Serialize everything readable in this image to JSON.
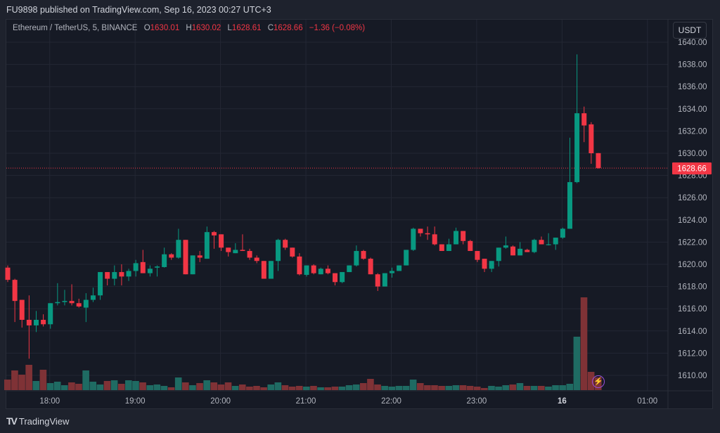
{
  "header": {
    "published": "FU9898 published on TradingView.com, Sep 16, 2023 00:27 UTC+3"
  },
  "legend": {
    "symbol": "Ethereum / TetherUS, 5, BINANCE",
    "o_label": "O",
    "o": "1630.01",
    "h_label": "H",
    "h": "1630.02",
    "l_label": "L",
    "l": "1628.61",
    "c_label": "C",
    "c": "1628.66",
    "change": "−1.36 (−0.08%)"
  },
  "currency_button": "USDT",
  "footer": {
    "logo_mark": "TV",
    "brand": "TradingView"
  },
  "colors": {
    "up": "#089981",
    "down": "#f23645",
    "vol_up": "#1f6b63",
    "vol_down": "#7f3236",
    "grid": "#232734",
    "text": "#b2b5be"
  },
  "chart_data": {
    "type": "candlestick",
    "title": "Ethereum / TetherUS, 5, BINANCE",
    "interval_minutes": 5,
    "first_candle": "17:30",
    "last_price": 1628.66,
    "last_price_label": "1628.66",
    "ylim": [
      1609,
      1640.5
    ],
    "y_ticks": [
      "1610.00",
      "1612.00",
      "1614.00",
      "1616.00",
      "1618.00",
      "1620.00",
      "1622.00",
      "1624.00",
      "1626.00",
      "1628.00",
      "1630.00",
      "1632.00",
      "1634.00",
      "1636.00",
      "1638.00",
      "1640.00"
    ],
    "x_ticks": [
      {
        "label": "18:00",
        "index": 6
      },
      {
        "label": "19:00",
        "index": 18
      },
      {
        "label": "20:00",
        "index": 30
      },
      {
        "label": "21:00",
        "index": 42
      },
      {
        "label": "22:00",
        "index": 54
      },
      {
        "label": "23:00",
        "index": 66
      },
      {
        "label": "16",
        "index": 78,
        "bold": true
      },
      {
        "label": "01:00",
        "index": 90
      }
    ],
    "ohlc": [
      [
        1619.7,
        1619.9,
        1618.4,
        1618.6
      ],
      [
        1618.6,
        1618.7,
        1614.8,
        1616.7
      ],
      [
        1616.8,
        1616.8,
        1614.3,
        1615.0
      ],
      [
        1615.0,
        1617.2,
        1611.5,
        1614.5
      ],
      [
        1614.5,
        1615.8,
        1613.9,
        1615.0
      ],
      [
        1615.0,
        1615.5,
        1614.4,
        1614.6
      ],
      [
        1614.6,
        1616.5,
        1614.2,
        1616.5
      ],
      [
        1616.5,
        1618.3,
        1616.3,
        1616.6
      ],
      [
        1616.6,
        1617.7,
        1616.3,
        1616.7
      ],
      [
        1616.7,
        1618.2,
        1616.3,
        1616.5
      ],
      [
        1616.5,
        1616.9,
        1616.1,
        1616.2
      ],
      [
        1616.1,
        1617.4,
        1614.8,
        1616.8
      ],
      [
        1616.8,
        1617.9,
        1616.6,
        1617.2
      ],
      [
        1617.2,
        1619.3,
        1616.8,
        1619.3
      ],
      [
        1619.3,
        1619.3,
        1618.1,
        1618.7
      ],
      [
        1618.7,
        1619.9,
        1618.1,
        1619.3
      ],
      [
        1619.3,
        1620.0,
        1618.1,
        1618.9
      ],
      [
        1618.9,
        1619.6,
        1618.5,
        1619.4
      ],
      [
        1619.4,
        1620.4,
        1618.9,
        1620.1
      ],
      [
        1620.2,
        1621.3,
        1619.2,
        1619.2
      ],
      [
        1619.2,
        1619.9,
        1618.9,
        1619.6
      ],
      [
        1619.7,
        1619.9,
        1618.9,
        1619.8
      ],
      [
        1619.75,
        1621.5,
        1619.7,
        1620.9
      ],
      [
        1620.9,
        1621.0,
        1620.4,
        1620.6
      ],
      [
        1620.6,
        1623.2,
        1620.5,
        1622.2
      ],
      [
        1622.2,
        1622.2,
        1619.1,
        1619.1
      ],
      [
        1619.1,
        1620.8,
        1619.1,
        1620.8
      ],
      [
        1620.8,
        1621.2,
        1620.2,
        1620.6
      ],
      [
        1620.5,
        1623.4,
        1620.5,
        1622.9
      ],
      [
        1622.9,
        1623.0,
        1621.4,
        1622.6
      ],
      [
        1622.7,
        1622.7,
        1621.2,
        1621.5
      ],
      [
        1621.5,
        1621.5,
        1620.7,
        1621.1
      ],
      [
        1621.0,
        1621.9,
        1621.0,
        1621.3
      ],
      [
        1621.3,
        1622.7,
        1621.2,
        1621.2
      ],
      [
        1621.2,
        1621.4,
        1620.4,
        1620.6
      ],
      [
        1620.6,
        1620.8,
        1620.1,
        1620.3
      ],
      [
        1620.3,
        1620.3,
        1618.7,
        1618.7
      ],
      [
        1618.7,
        1620.3,
        1618.7,
        1620.3
      ],
      [
        1620.3,
        1622.3,
        1619.4,
        1622.2
      ],
      [
        1622.2,
        1622.3,
        1621.3,
        1621.5
      ],
      [
        1621.5,
        1621.5,
        1620.6,
        1620.7
      ],
      [
        1620.7,
        1621.0,
        1619.0,
        1619.1
      ],
      [
        1619.05,
        1619.9,
        1618.9,
        1619.9
      ],
      [
        1619.9,
        1620.0,
        1619.1,
        1619.2
      ],
      [
        1619.1,
        1619.7,
        1619.1,
        1619.6
      ],
      [
        1619.6,
        1619.9,
        1619.1,
        1619.2
      ],
      [
        1619.2,
        1619.2,
        1618.1,
        1618.4
      ],
      [
        1618.4,
        1619.3,
        1618.3,
        1619.3
      ],
      [
        1619.3,
        1619.9,
        1619.3,
        1619.9
      ],
      [
        1619.9,
        1621.7,
        1619.8,
        1621.2
      ],
      [
        1621.2,
        1621.3,
        1620.4,
        1620.5
      ],
      [
        1620.5,
        1620.6,
        1619.1,
        1619.1
      ],
      [
        1619.1,
        1619.2,
        1617.6,
        1618.0
      ],
      [
        1618.0,
        1619.2,
        1618.0,
        1619.2
      ],
      [
        1619.2,
        1619.7,
        1618.8,
        1619.4
      ],
      [
        1619.4,
        1619.9,
        1619.4,
        1619.9
      ],
      [
        1619.9,
        1621.3,
        1619.9,
        1621.3
      ],
      [
        1621.3,
        1623.3,
        1621.2,
        1623.2
      ],
      [
        1623.2,
        1623.2,
        1622.5,
        1622.8
      ],
      [
        1622.8,
        1623.4,
        1622.2,
        1622.7
      ],
      [
        1622.7,
        1623.4,
        1621.7,
        1621.8
      ],
      [
        1621.8,
        1621.8,
        1621.2,
        1621.2
      ],
      [
        1621.2,
        1622.3,
        1621.2,
        1621.8
      ],
      [
        1621.8,
        1623.3,
        1621.8,
        1623.0
      ],
      [
        1623.0,
        1623.0,
        1621.8,
        1622.1
      ],
      [
        1622.1,
        1622.2,
        1621.2,
        1621.2
      ],
      [
        1621.2,
        1621.2,
        1620.2,
        1620.4
      ],
      [
        1620.5,
        1620.5,
        1619.3,
        1619.6
      ],
      [
        1619.6,
        1620.3,
        1619.3,
        1620.3
      ],
      [
        1620.3,
        1621.5,
        1619.8,
        1621.5
      ],
      [
        1621.5,
        1622.5,
        1621.4,
        1621.7
      ],
      [
        1621.6,
        1621.7,
        1620.8,
        1620.8
      ],
      [
        1620.8,
        1622.0,
        1620.8,
        1621.4
      ],
      [
        1621.3,
        1621.4,
        1621.1,
        1621.1
      ],
      [
        1621.1,
        1622.3,
        1621.0,
        1622.2
      ],
      [
        1622.2,
        1622.5,
        1621.8,
        1621.8
      ],
      [
        1621.8,
        1622.8,
        1621.7,
        1621.8
      ],
      [
        1621.8,
        1622.4,
        1621.3,
        1622.4
      ],
      [
        1622.4,
        1623.3,
        1622.3,
        1623.2
      ],
      [
        1623.2,
        1631.4,
        1623.2,
        1627.4
      ],
      [
        1627.4,
        1638.9,
        1627.3,
        1633.6
      ],
      [
        1633.6,
        1634.2,
        1631.0,
        1632.5
      ],
      [
        1632.6,
        1632.8,
        1629.05,
        1630.0
      ],
      [
        1630.01,
        1630.02,
        1628.61,
        1628.66
      ]
    ],
    "volume_relative": [
      15,
      28,
      22,
      36,
      13,
      29,
      10,
      12,
      7,
      11,
      9,
      28,
      12,
      8,
      13,
      14,
      9,
      14,
      13,
      11,
      7,
      8,
      6,
      4,
      18,
      11,
      7,
      10,
      14,
      11,
      8,
      11,
      6,
      8,
      5,
      6,
      4,
      8,
      11,
      7,
      5,
      6,
      5,
      6,
      4,
      4,
      5,
      5,
      7,
      8,
      10,
      16,
      8,
      6,
      5,
      6,
      6,
      15,
      10,
      7,
      7,
      6,
      6,
      7,
      7,
      6,
      5,
      3,
      6,
      5,
      7,
      8,
      10,
      6,
      6,
      6,
      5,
      7,
      7,
      9,
      76,
      132,
      26,
      18
    ]
  }
}
